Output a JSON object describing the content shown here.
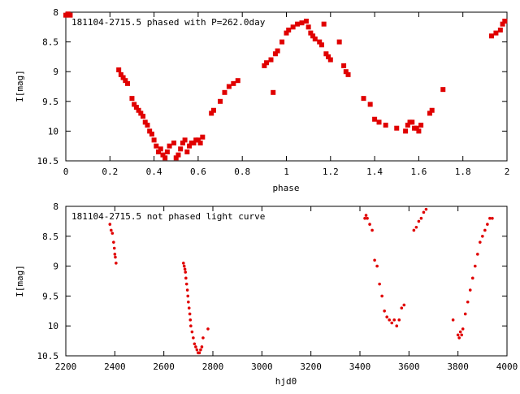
{
  "chart_data": [
    {
      "type": "scatter",
      "title": "181104-2715.5 phased with P=262.0day",
      "xlabel": "phase",
      "ylabel": "I[mag]",
      "xlim": [
        0,
        2
      ],
      "ylim": [
        10.5,
        8
      ],
      "y_inverted": true,
      "xticks": [
        "0",
        "0.2",
        "0.4",
        "0.6",
        "0.8",
        "1",
        "1.2",
        "1.4",
        "1.6",
        "1.8",
        "2"
      ],
      "yticks": [
        "8",
        "8.5",
        "9",
        "9.5",
        "10",
        "10.5"
      ],
      "marker": "plus",
      "color": "#e00000",
      "series": [
        {
          "x": [
            0.0,
            0.01,
            0.02,
            0.24,
            0.25,
            0.26,
            0.27,
            0.28,
            0.3,
            0.31,
            0.32,
            0.33,
            0.34,
            0.35,
            0.36,
            0.37,
            0.38,
            0.39,
            0.4,
            0.41,
            0.42,
            0.43,
            0.44,
            0.45,
            0.46,
            0.47,
            0.49,
            0.5,
            0.51,
            0.52,
            0.53,
            0.54,
            0.55,
            0.56,
            0.57,
            0.58,
            0.59,
            0.6,
            0.61,
            0.62,
            0.66,
            0.67,
            0.7,
            0.72,
            0.74,
            0.76,
            0.78,
            0.9,
            0.91,
            0.93,
            0.94,
            0.95,
            0.96,
            0.98,
            1.0,
            1.01,
            1.03,
            1.05,
            1.07,
            1.09,
            1.1,
            1.11,
            1.12,
            1.13,
            1.15,
            1.16,
            1.17,
            1.18,
            1.19,
            1.2,
            1.24,
            1.26,
            1.27,
            1.28,
            1.35,
            1.38,
            1.4,
            1.42,
            1.45,
            1.5,
            1.54,
            1.55,
            1.56,
            1.57,
            1.58,
            1.59,
            1.6,
            1.61,
            1.65,
            1.66,
            1.71,
            1.93,
            1.95,
            1.97,
            1.98,
            1.99
          ],
          "y": [
            8.05,
            8.03,
            8.05,
            8.97,
            9.05,
            9.1,
            9.15,
            9.2,
            9.45,
            9.55,
            9.6,
            9.65,
            9.7,
            9.75,
            9.85,
            9.9,
            10.0,
            10.05,
            10.15,
            10.25,
            10.35,
            10.3,
            10.4,
            10.45,
            10.35,
            10.25,
            10.2,
            10.45,
            10.4,
            10.3,
            10.2,
            10.15,
            10.35,
            10.25,
            10.2,
            10.2,
            10.15,
            10.15,
            10.2,
            10.1,
            9.7,
            9.65,
            9.5,
            9.35,
            9.25,
            9.2,
            9.15,
            8.9,
            8.85,
            8.8,
            9.35,
            8.7,
            8.65,
            8.5,
            8.35,
            8.3,
            8.25,
            8.2,
            8.18,
            8.15,
            8.25,
            8.35,
            8.4,
            8.45,
            8.5,
            8.55,
            8.2,
            8.7,
            8.75,
            8.8,
            8.5,
            8.9,
            9.0,
            9.05,
            9.45,
            9.55,
            9.8,
            9.85,
            9.9,
            9.95,
            10.0,
            9.9,
            9.85,
            9.85,
            9.95,
            9.95,
            10.0,
            9.9,
            9.7,
            9.65,
            9.3,
            8.4,
            8.35,
            8.3,
            8.2,
            8.15
          ]
        }
      ]
    },
    {
      "type": "scatter",
      "title": "181104-2715.5 not phased light curve",
      "xlabel": "hjd0",
      "ylabel": "I[mag]",
      "xlim": [
        2200,
        4000
      ],
      "ylim": [
        10.5,
        8
      ],
      "y_inverted": true,
      "xticks": [
        "2200",
        "2400",
        "2600",
        "2800",
        "3000",
        "3200",
        "3400",
        "3600",
        "3800",
        "4000"
      ],
      "yticks": [
        "8",
        "8.5",
        "9",
        "9.5",
        "10",
        "10.5"
      ],
      "marker": "dot",
      "color": "#e00000",
      "series": [
        {
          "x": [
            2380,
            2385,
            2390,
            2395,
            2398,
            2400,
            2402,
            2405,
            2680,
            2683,
            2686,
            2688,
            2690,
            2693,
            2696,
            2698,
            2700,
            2703,
            2706,
            2708,
            2710,
            2715,
            2720,
            2725,
            2730,
            2735,
            2740,
            2745,
            2750,
            2755,
            2760,
            2780,
            3420,
            3425,
            3430,
            3440,
            3450,
            3460,
            3470,
            3480,
            3490,
            3500,
            3510,
            3520,
            3530,
            3540,
            3550,
            3560,
            3570,
            3580,
            3620,
            3630,
            3640,
            3650,
            3660,
            3670,
            3780,
            3800,
            3805,
            3810,
            3815,
            3820,
            3830,
            3840,
            3850,
            3860,
            3870,
            3880,
            3890,
            3900,
            3910,
            3920,
            3930,
            3940
          ],
          "y": [
            8.3,
            8.4,
            8.45,
            8.6,
            8.7,
            8.8,
            8.85,
            8.95,
            8.95,
            9.0,
            9.05,
            9.1,
            9.2,
            9.3,
            9.4,
            9.5,
            9.6,
            9.7,
            9.8,
            9.9,
            10.0,
            10.1,
            10.2,
            10.3,
            10.35,
            10.4,
            10.45,
            10.45,
            10.4,
            10.35,
            10.2,
            10.05,
            8.2,
            8.15,
            8.2,
            8.3,
            8.4,
            8.9,
            9.0,
            9.3,
            9.5,
            9.75,
            9.85,
            9.9,
            9.95,
            9.9,
            10.0,
            9.9,
            9.7,
            9.65,
            8.4,
            8.35,
            8.25,
            8.2,
            8.1,
            8.05,
            9.9,
            10.15,
            10.2,
            10.1,
            10.15,
            10.05,
            9.8,
            9.6,
            9.4,
            9.2,
            9.0,
            8.8,
            8.6,
            8.5,
            8.4,
            8.3,
            8.2,
            8.2
          ]
        }
      ]
    }
  ]
}
